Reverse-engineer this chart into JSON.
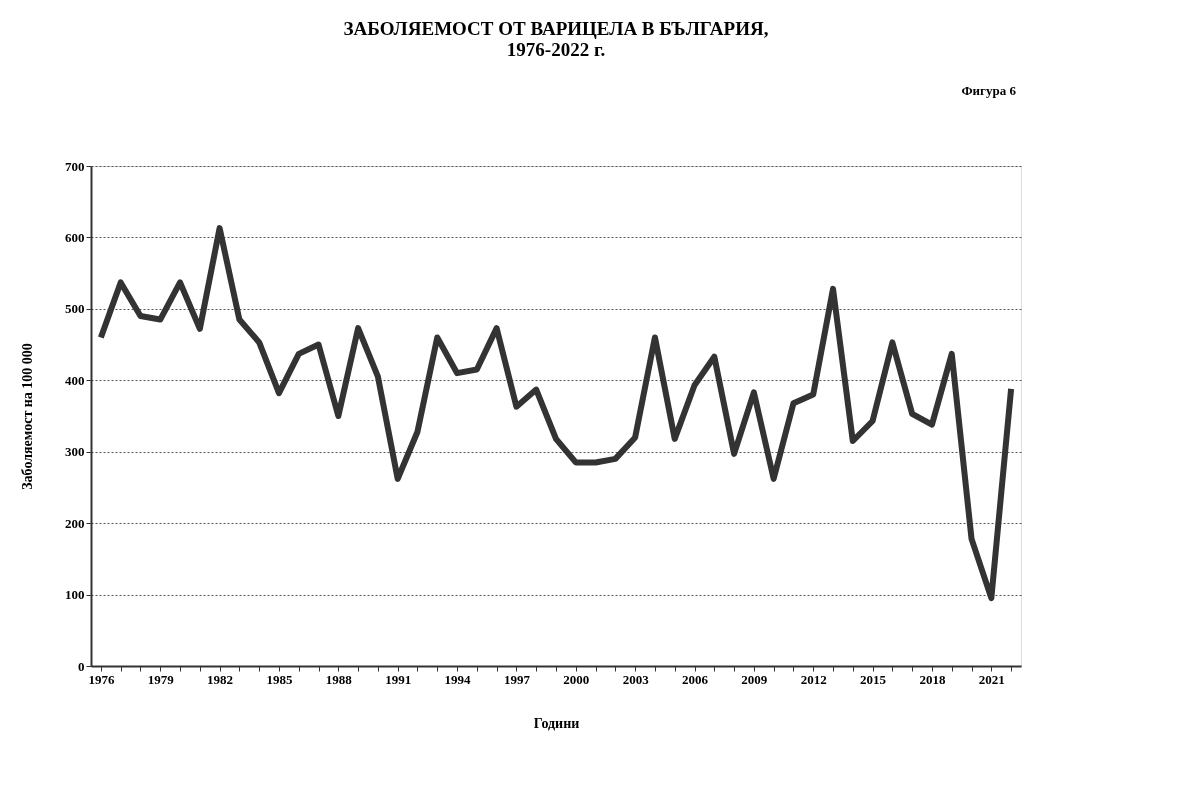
{
  "chart_data": {
    "type": "line",
    "title": "ЗАБОЛЯЕМОСТ ОТ ВАРИЦЕЛА В БЪЛГАРИЯ,\n1976-2022 г.",
    "xlabel": "Години",
    "ylabel": "Заболяемост на 100 000",
    "annotations": [
      "Фигура 6"
    ],
    "categories": [
      "1976",
      null,
      null,
      "1979",
      null,
      null,
      "1982",
      null,
      null,
      "1985",
      null,
      null,
      "1988",
      null,
      null,
      "1991",
      null,
      null,
      "1994",
      null,
      null,
      "1997",
      null,
      null,
      "2000",
      null,
      null,
      "2003",
      null,
      null,
      "2006",
      null,
      null,
      "2009",
      null,
      null,
      "2012",
      null,
      null,
      "2015",
      null,
      null,
      "2018",
      null,
      null,
      "2021",
      null
    ],
    "series": [
      {
        "color": "#333333",
        "values": [
          460,
          537,
          490,
          485,
          537,
          472,
          613,
          485,
          453,
          382,
          437,
          450,
          350,
          473,
          405,
          262,
          328,
          460,
          410,
          415,
          473,
          363,
          387,
          318,
          285,
          285,
          290,
          320,
          460,
          318,
          393,
          433,
          297,
          383,
          262,
          368,
          380,
          528,
          315,
          343,
          453,
          353,
          338,
          437,
          178,
          95,
          388
        ]
      }
    ],
    "ylim": [
      0,
      700
    ],
    "yticks": [
      0,
      100,
      200,
      300,
      400,
      500,
      600,
      700
    ],
    "grid": "y",
    "marker": "none",
    "line_style": "solid"
  }
}
